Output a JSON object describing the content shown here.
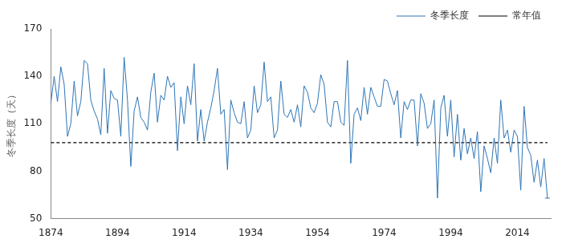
{
  "chart_data": {
    "type": "line",
    "y_label": "冬季长度（天）",
    "x": [
      1874,
      1875,
      1876,
      1877,
      1878,
      1879,
      1880,
      1881,
      1882,
      1883,
      1884,
      1885,
      1886,
      1887,
      1888,
      1889,
      1890,
      1891,
      1892,
      1893,
      1894,
      1895,
      1896,
      1897,
      1898,
      1899,
      1900,
      1901,
      1902,
      1903,
      1904,
      1905,
      1906,
      1907,
      1908,
      1909,
      1910,
      1911,
      1912,
      1913,
      1914,
      1915,
      1916,
      1917,
      1918,
      1919,
      1920,
      1921,
      1922,
      1923,
      1924,
      1925,
      1926,
      1927,
      1928,
      1929,
      1930,
      1931,
      1932,
      1933,
      1934,
      1935,
      1936,
      1937,
      1938,
      1939,
      1940,
      1941,
      1942,
      1943,
      1944,
      1945,
      1946,
      1947,
      1948,
      1949,
      1950,
      1951,
      1952,
      1953,
      1954,
      1955,
      1956,
      1957,
      1958,
      1959,
      1960,
      1961,
      1962,
      1963,
      1964,
      1965,
      1966,
      1967,
      1968,
      1969,
      1970,
      1971,
      1972,
      1973,
      1974,
      1975,
      1976,
      1977,
      1978,
      1979,
      1980,
      1981,
      1982,
      1983,
      1984,
      1985,
      1986,
      1987,
      1988,
      1989,
      1990,
      1991,
      1992,
      1993,
      1994,
      1995,
      1996,
      1997,
      1998,
      1999,
      2000,
      2001,
      2002,
      2003,
      2004,
      2005,
      2006,
      2007,
      2008,
      2009,
      2010,
      2011,
      2012,
      2013,
      2014,
      2015,
      2016,
      2017,
      2018,
      2019,
      2020,
      2021,
      2022,
      2023
    ],
    "series": [
      {
        "name": "冬季长度",
        "color": "#2e75b6",
        "line_style": "solid",
        "values": [
          123,
          140,
          124,
          146,
          135,
          102,
          110,
          137,
          115,
          124,
          150,
          148,
          125,
          118,
          113,
          103,
          145,
          104,
          131,
          126,
          125,
          102,
          152,
          125,
          83,
          118,
          127,
          114,
          111,
          106,
          130,
          142,
          111,
          128,
          125,
          140,
          133,
          136,
          93,
          127,
          110,
          134,
          122,
          148,
          99,
          119,
          99,
          111,
          120,
          131,
          145,
          116,
          119,
          81,
          125,
          117,
          111,
          110,
          124,
          101,
          106,
          134,
          117,
          122,
          149,
          124,
          127,
          101,
          106,
          137,
          116,
          114,
          119,
          111,
          122,
          108,
          134,
          130,
          120,
          117,
          123,
          141,
          135,
          111,
          108,
          124,
          124,
          111,
          109,
          150,
          85,
          116,
          120,
          112,
          133,
          116,
          133,
          127,
          121,
          121,
          138,
          137,
          129,
          122,
          131,
          101,
          124,
          119,
          125,
          125,
          96,
          129,
          123,
          107,
          110,
          125,
          63,
          120,
          128,
          102,
          125,
          89,
          116,
          87,
          107,
          91,
          101,
          88,
          105,
          67,
          96,
          88,
          79,
          101,
          85,
          125,
          101,
          106,
          92,
          106,
          102,
          68,
          121,
          95,
          90,
          73,
          87,
          70,
          88,
          63
        ]
      },
      {
        "name": "常年值",
        "color": "#000000",
        "line_style": "dashed",
        "values": [
          98,
          98,
          98,
          98,
          98,
          98,
          98,
          98,
          98,
          98,
          98,
          98,
          98,
          98,
          98,
          98,
          98,
          98,
          98,
          98,
          98,
          98,
          98,
          98,
          98,
          98,
          98,
          98,
          98,
          98,
          98,
          98,
          98,
          98,
          98,
          98,
          98,
          98,
          98,
          98,
          98,
          98,
          98,
          98,
          98,
          98,
          98,
          98,
          98,
          98,
          98,
          98,
          98,
          98,
          98,
          98,
          98,
          98,
          98,
          98,
          98,
          98,
          98,
          98,
          98,
          98,
          98,
          98,
          98,
          98,
          98,
          98,
          98,
          98,
          98,
          98,
          98,
          98,
          98,
          98,
          98,
          98,
          98,
          98,
          98,
          98,
          98,
          98,
          98,
          98,
          98,
          98,
          98,
          98,
          98,
          98,
          98,
          98,
          98,
          98,
          98,
          98,
          98,
          98,
          98,
          98,
          98,
          98,
          98,
          98,
          98,
          98,
          98,
          98,
          98,
          98,
          98,
          98,
          98,
          98,
          98,
          98,
          98,
          98,
          98,
          98,
          98,
          98,
          98,
          98,
          98,
          98,
          98,
          98,
          98,
          98,
          98,
          98,
          98,
          98,
          98,
          98,
          98,
          98,
          98,
          98,
          98,
          98,
          98,
          98
        ]
      }
    ],
    "xlim": [
      1874,
      2024
    ],
    "xticks": [
      1874,
      1894,
      1914,
      1934,
      1954,
      1974,
      1994,
      2014
    ],
    "ylim": [
      50,
      170
    ],
    "yticks": [
      50,
      80,
      110,
      140,
      170
    ],
    "grid": false,
    "legend": "upper right"
  }
}
